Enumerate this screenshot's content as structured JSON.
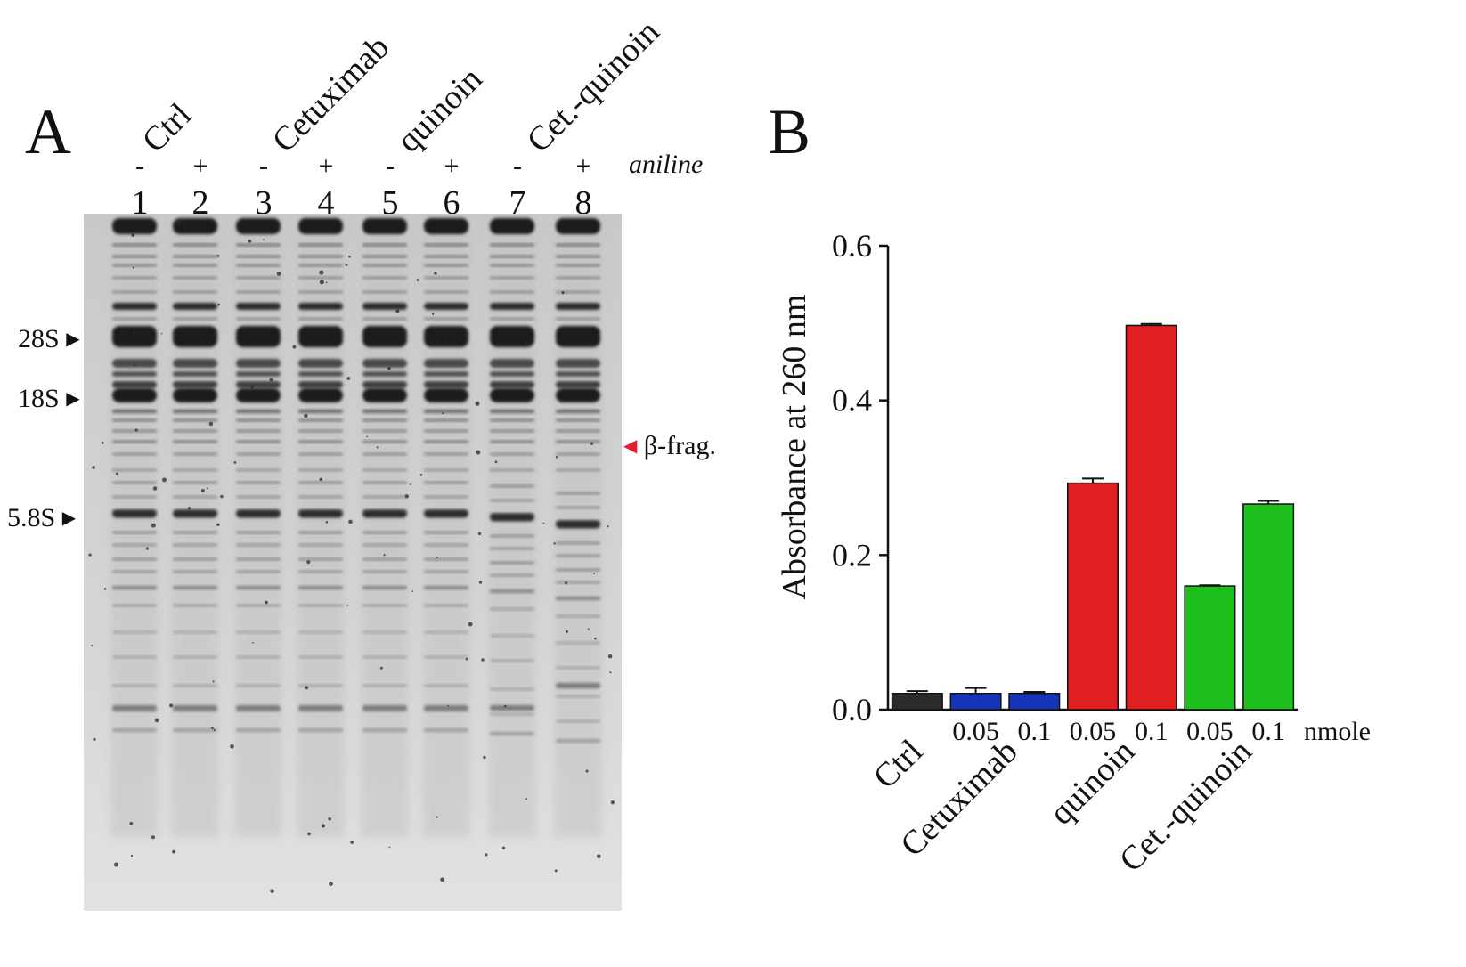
{
  "panel_a": {
    "letter": "A",
    "groups": [
      {
        "label": "Ctrl"
      },
      {
        "label": "Cetuximab"
      },
      {
        "label": "quinoin"
      },
      {
        "label": "Cet.-quinoin"
      }
    ],
    "aniline_label": "aniline",
    "lanes": [
      {
        "sign": "-",
        "number": "1"
      },
      {
        "sign": "+",
        "number": "2"
      },
      {
        "sign": "-",
        "number": "3"
      },
      {
        "sign": "+",
        "number": "4"
      },
      {
        "sign": "-",
        "number": "5"
      },
      {
        "sign": "+",
        "number": "6"
      },
      {
        "sign": "-",
        "number": "7"
      },
      {
        "sign": "+",
        "number": "8"
      }
    ],
    "markers_left": [
      "28S",
      "18S",
      "5.8S"
    ],
    "marker_right": "β-frag.",
    "marker_right_color": "#e0202a"
  },
  "panel_b": {
    "letter": "B"
  },
  "chart_data": {
    "type": "bar",
    "ylabel": "Absorbance at 260 nm",
    "xlabel": "",
    "ylim": [
      0,
      0.6
    ],
    "yticks": [
      "0.0",
      "0.2",
      "0.4",
      "0.6"
    ],
    "ytick_values": [
      0,
      0.2,
      0.4,
      0.6
    ],
    "unit_label": "nmole",
    "groups": [
      {
        "label": "Ctrl",
        "color": "#2b2b2b",
        "bars": [
          {
            "dose": "",
            "value": 0.021,
            "error": 0.003
          }
        ]
      },
      {
        "label": "Cetuximab",
        "color": "#1535b8",
        "bars": [
          {
            "dose": "0.05",
            "value": 0.021,
            "error": 0.007
          },
          {
            "dose": "0.1",
            "value": 0.021,
            "error": 0.002
          }
        ]
      },
      {
        "label": "quinoin",
        "color": "#e02020",
        "bars": [
          {
            "dose": "0.05",
            "value": 0.293,
            "error": 0.006
          },
          {
            "dose": "0.1",
            "value": 0.497,
            "error": 0.002
          }
        ]
      },
      {
        "label": "Cet.-quinoin",
        "color": "#1cbf1c",
        "bars": [
          {
            "dose": "0.05",
            "value": 0.16,
            "error": 0.001
          },
          {
            "dose": "0.1",
            "value": 0.266,
            "error": 0.004
          }
        ]
      }
    ]
  }
}
